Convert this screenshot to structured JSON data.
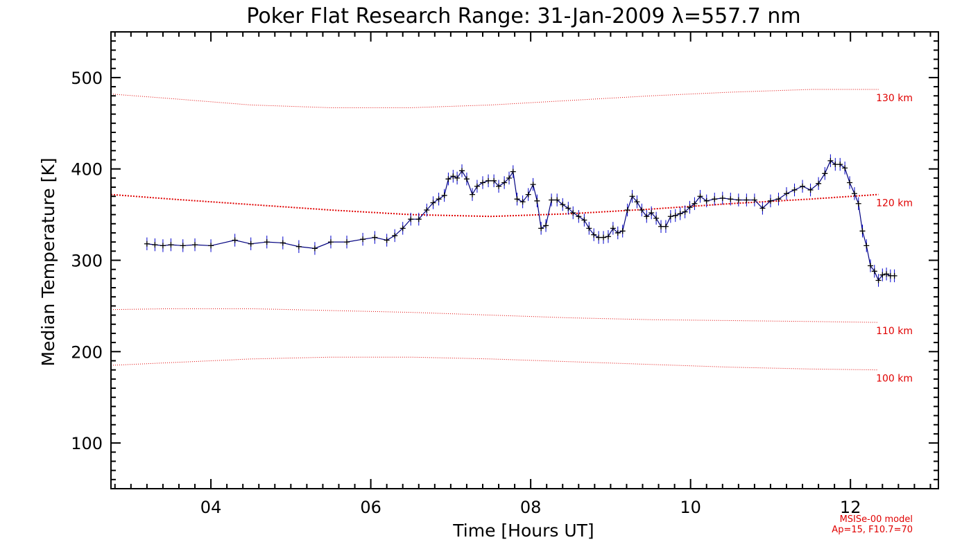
{
  "chart_data": {
    "type": "line",
    "title": "Poker Flat Research Range: 31-Jan-2009 λ=557.7 nm",
    "xlabel": "Time [Hours UT]",
    "ylabel": "Median Temperature [K]",
    "xlim": [
      2.75,
      13.1
    ],
    "ylim": [
      50,
      550
    ],
    "x_ticks": [
      4,
      6,
      8,
      10,
      12
    ],
    "x_tick_labels": [
      "04",
      "06",
      "08",
      "10",
      "12"
    ],
    "y_ticks": [
      100,
      200,
      300,
      400,
      500
    ],
    "y_tick_labels": [
      "100",
      "200",
      "300",
      "400",
      "500"
    ],
    "colors": {
      "data": "#000080",
      "error_bars": "#0000cc",
      "model": "#e00000",
      "axes": "#000000"
    },
    "series": [
      {
        "name": "Median Temperature",
        "style": "line-with-plus-markers-and-error-bars",
        "error": 7,
        "x": [
          3.2,
          3.3,
          3.4,
          3.5,
          3.65,
          3.8,
          4.0,
          4.3,
          4.5,
          4.7,
          4.9,
          5.1,
          5.3,
          5.5,
          5.7,
          5.9,
          6.05,
          6.2,
          6.3,
          6.4,
          6.5,
          6.6,
          6.7,
          6.78,
          6.85,
          6.92,
          6.97,
          7.03,
          7.08,
          7.14,
          7.2,
          7.27,
          7.33,
          7.4,
          7.47,
          7.54,
          7.6,
          7.67,
          7.73,
          7.78,
          7.83,
          7.9,
          7.97,
          8.03,
          8.08,
          8.13,
          8.19,
          8.26,
          8.33,
          8.4,
          8.47,
          8.53,
          8.6,
          8.67,
          8.73,
          8.79,
          8.85,
          8.91,
          8.97,
          9.03,
          9.09,
          9.15,
          9.21,
          9.27,
          9.33,
          9.39,
          9.45,
          9.51,
          9.57,
          9.63,
          9.69,
          9.75,
          9.81,
          9.87,
          9.93,
          9.99,
          10.05,
          10.12,
          10.2,
          10.3,
          10.4,
          10.5,
          10.6,
          10.7,
          10.8,
          10.9,
          11.0,
          11.1,
          11.2,
          11.3,
          11.4,
          11.5,
          11.6,
          11.68,
          11.75,
          11.81,
          11.87,
          11.93,
          11.99,
          12.05,
          12.1,
          12.15,
          12.2,
          12.25,
          12.3,
          12.35,
          12.4,
          12.45,
          12.5,
          12.55
        ],
        "y": [
          318,
          317,
          316,
          317,
          316,
          317,
          316,
          322,
          318,
          320,
          319,
          315,
          313,
          320,
          320,
          323,
          325,
          322,
          327,
          335,
          345,
          345,
          355,
          363,
          367,
          371,
          389,
          392,
          390,
          398,
          389,
          372,
          381,
          385,
          387,
          387,
          381,
          385,
          390,
          397,
          367,
          364,
          372,
          383,
          365,
          335,
          338,
          366,
          366,
          361,
          357,
          352,
          348,
          344,
          335,
          328,
          325,
          325,
          326,
          335,
          330,
          332,
          355,
          370,
          364,
          355,
          348,
          352,
          346,
          337,
          337,
          348,
          349,
          351,
          353,
          358,
          362,
          370,
          365,
          367,
          368,
          367,
          366,
          366,
          366,
          357,
          365,
          367,
          373,
          377,
          381,
          377,
          384,
          395,
          409,
          405,
          405,
          401,
          385,
          373,
          362,
          332,
          316,
          294,
          288,
          278,
          284,
          285,
          283,
          283
        ]
      }
    ],
    "model_curves": [
      {
        "name": "130 km",
        "label": "130 km",
        "emphasis": "light",
        "x": [
          2.75,
          3.5,
          4.5,
          5.5,
          6.5,
          7.5,
          8.5,
          9.5,
          10.5,
          11.5,
          12.35
        ],
        "y": [
          482,
          477,
          470,
          467,
          467,
          470,
          475,
          480,
          484,
          487,
          487
        ]
      },
      {
        "name": "120 km",
        "label": "120 km",
        "emphasis": "bold",
        "x": [
          2.75,
          3.5,
          4.5,
          5.5,
          6.5,
          7.5,
          8.5,
          9.5,
          10.5,
          11.5,
          12.35
        ],
        "y": [
          372,
          367,
          361,
          355,
          350,
          348,
          351,
          356,
          362,
          367,
          372
        ]
      },
      {
        "name": "110 km",
        "label": "110 km",
        "emphasis": "light",
        "x": [
          2.75,
          3.5,
          4.5,
          5.5,
          6.5,
          7.5,
          8.5,
          9.5,
          10.5,
          11.5,
          12.35
        ],
        "y": [
          246,
          247,
          247,
          245,
          243,
          240,
          237,
          235,
          234,
          233,
          232
        ]
      },
      {
        "name": "100 km",
        "label": "100 km",
        "emphasis": "light",
        "x": [
          2.75,
          3.5,
          4.5,
          5.5,
          6.5,
          7.5,
          8.5,
          9.5,
          10.5,
          11.5,
          12.35
        ],
        "y": [
          185,
          188,
          192,
          194,
          194,
          192,
          189,
          186,
          183,
          181,
          180
        ]
      }
    ],
    "annotations": [
      {
        "text": "MSISe-00 model",
        "color": "#e00000",
        "position": "bottom-right"
      },
      {
        "text": "Ap=15, F10.7=70",
        "color": "#e00000",
        "position": "bottom-right"
      }
    ],
    "grid": false,
    "legend": "none"
  }
}
